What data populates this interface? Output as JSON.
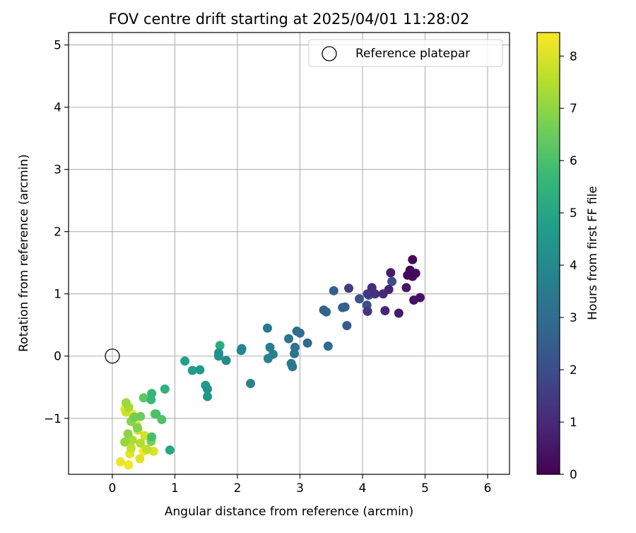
{
  "chart_data": {
    "type": "scatter",
    "title": "FOV centre drift starting at 2025/04/01 11:28:02",
    "xlabel": "Angular distance from reference (arcmin)",
    "ylabel": "Rotation from reference (arcmin)",
    "xlim": [
      -0.7,
      6.35
    ],
    "ylim": [
      -1.9,
      5.2
    ],
    "xticks": [
      "0",
      "1",
      "2",
      "3",
      "4",
      "5",
      "6"
    ],
    "yticks": [
      "−1",
      "0",
      "1",
      "2",
      "3",
      "4",
      "5"
    ],
    "grid": true,
    "legend": {
      "placement": "top-right",
      "entries": [
        "Reference platepar"
      ]
    },
    "reference_point": {
      "x": 0,
      "y": 0
    },
    "colorbar": {
      "label": "Hours from first FF file",
      "range": [
        0,
        8.45
      ],
      "ticks": [
        "0",
        "1",
        "2",
        "3",
        "4",
        "5",
        "6",
        "7",
        "8"
      ],
      "colormap": "viridis",
      "stops": [
        "#440154",
        "#482878",
        "#3e4989",
        "#31688e",
        "#26828e",
        "#1f9e89",
        "#35b779",
        "#6ece58",
        "#b5de2b",
        "#fde725"
      ]
    },
    "points": [
      {
        "x": 4.8,
        "y": 1.55,
        "t": 0.1
      },
      {
        "x": 4.76,
        "y": 1.38,
        "t": 0.15
      },
      {
        "x": 4.72,
        "y": 1.3,
        "t": 0.2
      },
      {
        "x": 4.85,
        "y": 1.33,
        "t": 0.25
      },
      {
        "x": 4.8,
        "y": 1.28,
        "t": 0.3
      },
      {
        "x": 4.92,
        "y": 0.94,
        "t": 0.35
      },
      {
        "x": 4.82,
        "y": 0.9,
        "t": 0.4
      },
      {
        "x": 4.7,
        "y": 1.1,
        "t": 0.5
      },
      {
        "x": 4.58,
        "y": 0.69,
        "t": 0.6
      },
      {
        "x": 4.45,
        "y": 1.34,
        "t": 0.7
      },
      {
        "x": 4.42,
        "y": 1.07,
        "t": 0.8
      },
      {
        "x": 4.36,
        "y": 0.73,
        "t": 0.9
      },
      {
        "x": 4.33,
        "y": 1.0,
        "t": 1.0
      },
      {
        "x": 4.15,
        "y": 1.1,
        "t": 1.1
      },
      {
        "x": 4.2,
        "y": 1.0,
        "t": 1.2
      },
      {
        "x": 4.08,
        "y": 0.72,
        "t": 1.3
      },
      {
        "x": 4.08,
        "y": 1.0,
        "t": 1.4
      },
      {
        "x": 3.78,
        "y": 1.09,
        "t": 1.5
      },
      {
        "x": 4.47,
        "y": 1.2,
        "t": 2.0
      },
      {
        "x": 4.07,
        "y": 0.82,
        "t": 2.1
      },
      {
        "x": 3.95,
        "y": 0.92,
        "t": 2.2
      },
      {
        "x": 4.1,
        "y": 0.98,
        "t": 2.3
      },
      {
        "x": 3.75,
        "y": 0.49,
        "t": 2.4
      },
      {
        "x": 3.54,
        "y": 1.05,
        "t": 2.5
      },
      {
        "x": 3.68,
        "y": 0.78,
        "t": 2.6
      },
      {
        "x": 3.72,
        "y": 0.79,
        "t": 2.65
      },
      {
        "x": 3.38,
        "y": 0.74,
        "t": 2.7
      },
      {
        "x": 3.42,
        "y": 0.71,
        "t": 2.8
      },
      {
        "x": 3.45,
        "y": 0.16,
        "t": 2.9
      },
      {
        "x": 3.12,
        "y": 0.21,
        "t": 3.0
      },
      {
        "x": 3.0,
        "y": 0.37,
        "t": 3.05
      },
      {
        "x": 2.95,
        "y": 0.4,
        "t": 3.1
      },
      {
        "x": 2.82,
        "y": 0.28,
        "t": 3.2
      },
      {
        "x": 2.92,
        "y": 0.14,
        "t": 3.25
      },
      {
        "x": 2.91,
        "y": 0.04,
        "t": 3.3
      },
      {
        "x": 2.86,
        "y": -0.12,
        "t": 3.35
      },
      {
        "x": 2.88,
        "y": -0.17,
        "t": 3.4
      },
      {
        "x": 2.48,
        "y": 0.45,
        "t": 3.5
      },
      {
        "x": 2.52,
        "y": 0.14,
        "t": 3.6
      },
      {
        "x": 2.57,
        "y": 0.03,
        "t": 3.7
      },
      {
        "x": 2.49,
        "y": -0.04,
        "t": 3.75
      },
      {
        "x": 2.21,
        "y": -0.44,
        "t": 3.8
      },
      {
        "x": 2.07,
        "y": 0.12,
        "t": 3.9
      },
      {
        "x": 2.06,
        "y": 0.09,
        "t": 4.0
      },
      {
        "x": 1.82,
        "y": -0.07,
        "t": 4.1
      },
      {
        "x": 1.7,
        "y": 0.05,
        "t": 4.2
      },
      {
        "x": 1.7,
        "y": 0.0,
        "t": 4.3
      },
      {
        "x": 1.52,
        "y": -0.53,
        "t": 4.4
      },
      {
        "x": 1.52,
        "y": -0.65,
        "t": 4.5
      },
      {
        "x": 1.49,
        "y": -0.47,
        "t": 4.55
      },
      {
        "x": 1.4,
        "y": -0.22,
        "t": 4.6
      },
      {
        "x": 1.28,
        "y": -0.23,
        "t": 4.7
      },
      {
        "x": 1.16,
        "y": -0.08,
        "t": 4.8
      },
      {
        "x": 0.92,
        "y": -1.51,
        "t": 5.0
      },
      {
        "x": 1.72,
        "y": 0.17,
        "t": 5.2
      },
      {
        "x": 0.84,
        "y": -0.53,
        "t": 5.4
      },
      {
        "x": 0.63,
        "y": -0.6,
        "t": 5.6
      },
      {
        "x": 0.62,
        "y": -0.7,
        "t": 5.7
      },
      {
        "x": 0.63,
        "y": -1.3,
        "t": 5.9
      },
      {
        "x": 0.7,
        "y": -0.93,
        "t": 6.0
      },
      {
        "x": 0.79,
        "y": -1.02,
        "t": 6.1
      },
      {
        "x": 0.5,
        "y": -0.67,
        "t": 6.3
      },
      {
        "x": 0.68,
        "y": -0.93,
        "t": 6.4
      },
      {
        "x": 0.45,
        "y": -0.97,
        "t": 6.5
      },
      {
        "x": 0.35,
        "y": -0.98,
        "t": 6.6
      },
      {
        "x": 0.62,
        "y": -1.37,
        "t": 6.7
      },
      {
        "x": 0.4,
        "y": -1.15,
        "t": 6.8
      },
      {
        "x": 0.3,
        "y": -1.05,
        "t": 6.9
      },
      {
        "x": 0.25,
        "y": -1.25,
        "t": 7.0
      },
      {
        "x": 0.2,
        "y": -1.38,
        "t": 7.1
      },
      {
        "x": 0.22,
        "y": -0.75,
        "t": 7.2
      },
      {
        "x": 0.26,
        "y": -0.82,
        "t": 7.3
      },
      {
        "x": 0.32,
        "y": -1.35,
        "t": 7.4
      },
      {
        "x": 0.45,
        "y": -1.4,
        "t": 7.5
      },
      {
        "x": 0.55,
        "y": -1.5,
        "t": 7.6
      },
      {
        "x": 0.3,
        "y": -1.48,
        "t": 7.7
      },
      {
        "x": 0.22,
        "y": -0.9,
        "t": 7.8
      },
      {
        "x": 0.41,
        "y": -1.19,
        "t": 7.85
      },
      {
        "x": 0.52,
        "y": -1.28,
        "t": 7.9
      },
      {
        "x": 0.66,
        "y": -1.53,
        "t": 8.0
      },
      {
        "x": 0.44,
        "y": -1.65,
        "t": 8.05
      },
      {
        "x": 0.28,
        "y": -1.57,
        "t": 8.1
      },
      {
        "x": 0.38,
        "y": -1.1,
        "t": 8.15
      },
      {
        "x": 0.2,
        "y": -0.85,
        "t": 8.2
      },
      {
        "x": 0.13,
        "y": -1.7,
        "t": 8.25
      },
      {
        "x": 0.26,
        "y": -1.75,
        "t": 8.3
      },
      {
        "x": 0.32,
        "y": -0.93,
        "t": 8.35
      },
      {
        "x": 0.5,
        "y": -1.53,
        "t": 8.4
      }
    ]
  }
}
